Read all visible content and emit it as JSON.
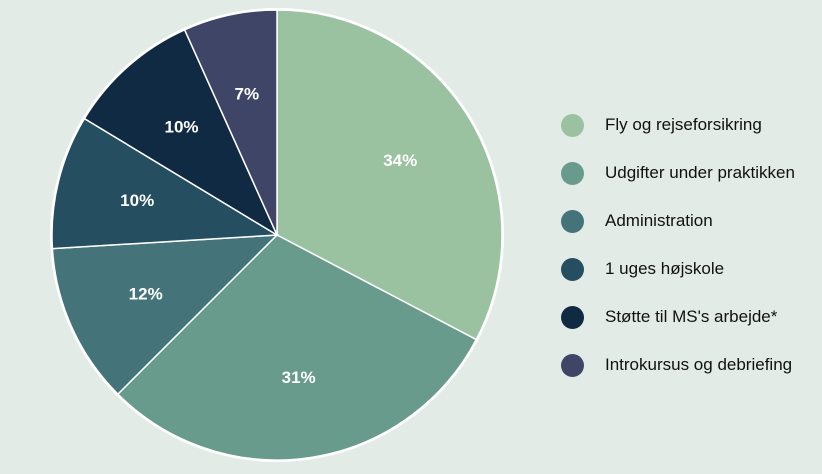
{
  "chart_data": {
    "type": "pie",
    "categories": [
      "Fly og rejseforsikring",
      "Udgifter under praktikken",
      "Administration",
      "1 uges højskole",
      "Støtte til MS's arbejde*",
      "Introkursus og debriefing"
    ],
    "values": [
      34,
      31,
      12,
      10,
      10,
      7
    ],
    "data_labels": [
      "34%",
      "31%",
      "12%",
      "10%",
      "10%",
      "7%"
    ],
    "colors": [
      "#9bc2a0",
      "#699b8d",
      "#44747a",
      "#254f61",
      "#112a43",
      "#3f4566"
    ],
    "legend_position": "right",
    "title": ""
  }
}
